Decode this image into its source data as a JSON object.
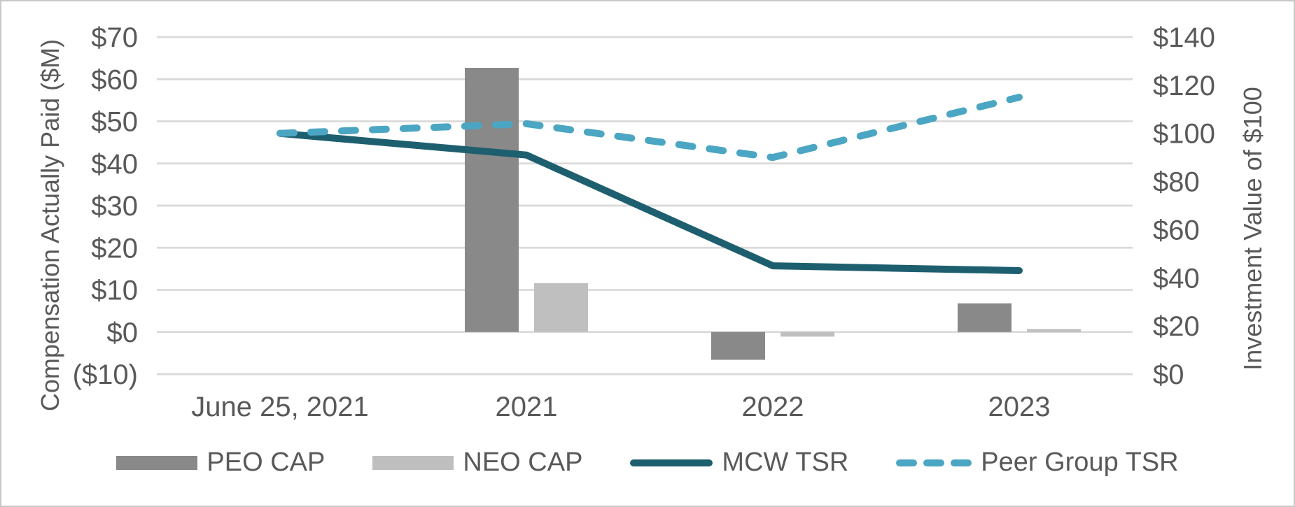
{
  "chart_data": {
    "type": "combo-bar-line",
    "categories": [
      "June 25, 2021",
      "2021",
      "2022",
      "2023"
    ],
    "bar_series": [
      {
        "name": "PEO CAP",
        "color": "#898989",
        "axis": "left",
        "values": [
          null,
          62.7,
          -6.6,
          6.8
        ]
      },
      {
        "name": "NEO CAP",
        "color": "#bfbfbf",
        "axis": "left",
        "values": [
          null,
          11.6,
          -1.1,
          0.7
        ]
      }
    ],
    "line_series": [
      {
        "name": "MCW TSR",
        "color": "#1e5f6f",
        "style": "solid",
        "axis": "right",
        "values": [
          100,
          91,
          45,
          43
        ]
      },
      {
        "name": "Peer Group TSR",
        "color": "#4ba6c3",
        "style": "dashed",
        "axis": "right",
        "values": [
          100,
          104,
          90,
          115
        ]
      }
    ],
    "left_axis": {
      "title": "Compensation Actually Paid ($M)",
      "range": [
        -10,
        70
      ],
      "ticks": [
        {
          "label": "$70",
          "value": 70
        },
        {
          "label": "$60",
          "value": 60
        },
        {
          "label": "$50",
          "value": 50
        },
        {
          "label": "$40",
          "value": 40
        },
        {
          "label": "$30",
          "value": 30
        },
        {
          "label": "$20",
          "value": 20
        },
        {
          "label": "$10",
          "value": 10
        },
        {
          "label": "$0",
          "value": 0
        },
        {
          "label": "($10)",
          "value": -10,
          "color": "#ff0000"
        }
      ]
    },
    "right_axis": {
      "title": "Investment Value of $100",
      "range": [
        0,
        140
      ],
      "ticks": [
        {
          "label": "$140",
          "value": 140
        },
        {
          "label": "$120",
          "value": 120
        },
        {
          "label": "$100",
          "value": 100
        },
        {
          "label": "$80",
          "value": 80
        },
        {
          "label": "$60",
          "value": 60
        },
        {
          "label": "$40",
          "value": 40
        },
        {
          "label": "$20",
          "value": 20
        },
        {
          "label": "$0",
          "value": 0
        }
      ]
    },
    "grid": true,
    "legend_position": "bottom",
    "text_color": "#595959",
    "gridline_color": "#d9d9d9",
    "negative_tick_color": "#ff0000"
  }
}
